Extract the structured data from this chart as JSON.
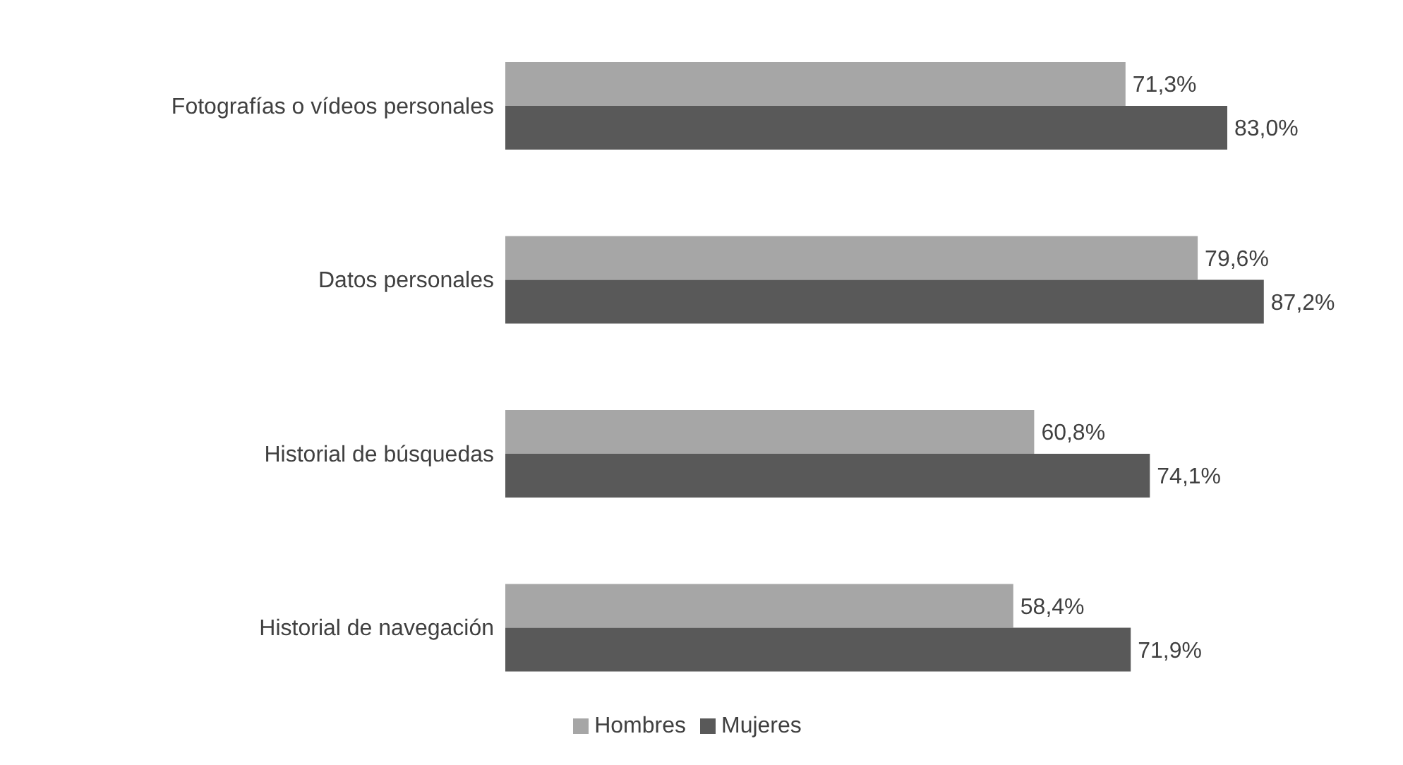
{
  "chart_data": {
    "type": "bar",
    "orientation": "horizontal",
    "tick_labels": "y",
    "categories": [
      "Fotografías o vídeos personales",
      "Datos personales",
      "Historial de búsquedas",
      "Historial de navegación"
    ],
    "series": [
      {
        "name": "Hombres",
        "color": "#a6a6a6",
        "values": [
          71.3,
          79.6,
          60.8,
          58.4
        ],
        "value_labels": [
          "71,3%",
          "79,6%",
          "60,8%",
          "58,4%"
        ]
      },
      {
        "name": "Mujeres",
        "color": "#595959",
        "values": [
          83.0,
          87.2,
          74.1,
          71.9
        ],
        "value_labels": [
          "83,0%",
          "87,2%",
          "74,1%",
          "71,9%"
        ]
      }
    ],
    "legend": "bottom",
    "grid": false
  }
}
